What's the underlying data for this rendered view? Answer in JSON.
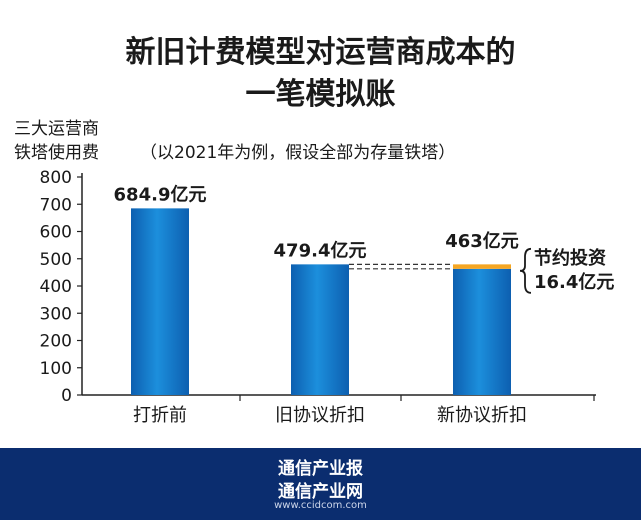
{
  "chart_data": {
    "type": "bar",
    "title": "新旧计费模型对运营商成本的一笔模拟账",
    "title_lines": [
      "新旧计费模型对运营商成本的",
      "一笔模拟账"
    ],
    "ylabel_lines": [
      "三大运营商",
      "铁塔使用费"
    ],
    "subtitle": "（以2021年为例，假设全部为存量铁塔）",
    "categories": [
      "打折前",
      "旧协议折扣",
      "新协议折扣"
    ],
    "values": [
      684.9,
      479.4,
      463
    ],
    "value_labels": [
      "684.9亿元",
      "479.4亿元",
      "463亿元"
    ],
    "ylim": [
      0,
      800
    ],
    "yticks": [
      0,
      100,
      200,
      300,
      400,
      500,
      600,
      700,
      800
    ],
    "grid": false,
    "savings": {
      "value": 16.4,
      "label_lines": [
        "节约投资",
        "16.4亿元"
      ]
    },
    "colors": {
      "bar": "#1c8fdc",
      "savings": "#f5a623",
      "axis": "#222222"
    }
  },
  "footer": {
    "line1": "通信产业报",
    "line2": "通信产业网",
    "url": "www.ccidcom.com"
  }
}
